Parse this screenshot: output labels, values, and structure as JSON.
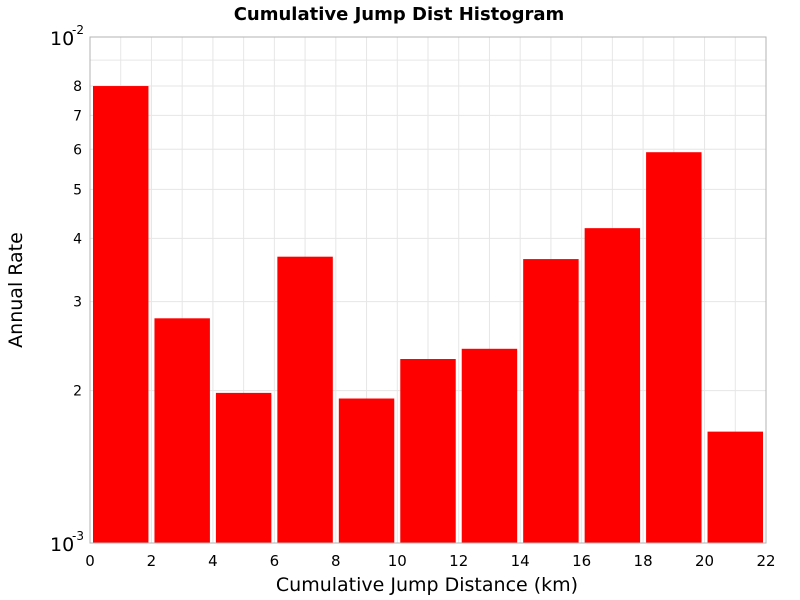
{
  "chart_data": {
    "type": "bar",
    "title": "Cumulative Jump Dist Histogram",
    "xlabel": "Cumulative Jump Distance (km)",
    "ylabel": "Annual Rate",
    "x_scale": "linear",
    "y_scale": "log",
    "xlim": [
      0,
      22
    ],
    "ylim": [
      0.001,
      0.01
    ],
    "bin_width": 2,
    "x_ticks": [
      0,
      2,
      4,
      6,
      8,
      10,
      12,
      14,
      16,
      18,
      20,
      22
    ],
    "y_major_ticks": [
      {
        "value": 0.001,
        "base": "10",
        "exp": "-3"
      },
      {
        "value": 0.01,
        "base": "10",
        "exp": "-2"
      }
    ],
    "y_minor_ticks": [
      {
        "value": 0.002,
        "label": "2"
      },
      {
        "value": 0.003,
        "label": "3"
      },
      {
        "value": 0.004,
        "label": "4"
      },
      {
        "value": 0.005,
        "label": "5"
      },
      {
        "value": 0.006,
        "label": "6"
      },
      {
        "value": 0.007,
        "label": "7"
      },
      {
        "value": 0.008,
        "label": "8"
      }
    ],
    "bars": [
      {
        "x": 1,
        "value": 0.008
      },
      {
        "x": 3,
        "value": 0.00278
      },
      {
        "x": 5,
        "value": 0.00198
      },
      {
        "x": 7,
        "value": 0.00368
      },
      {
        "x": 9,
        "value": 0.00193
      },
      {
        "x": 11,
        "value": 0.00231
      },
      {
        "x": 13,
        "value": 0.00242
      },
      {
        "x": 15,
        "value": 0.00364
      },
      {
        "x": 17,
        "value": 0.00419
      },
      {
        "x": 19,
        "value": 0.00592
      },
      {
        "x": 21,
        "value": 0.00166
      }
    ],
    "bar_color": "#ff0000",
    "grid": true,
    "legend": "none"
  }
}
